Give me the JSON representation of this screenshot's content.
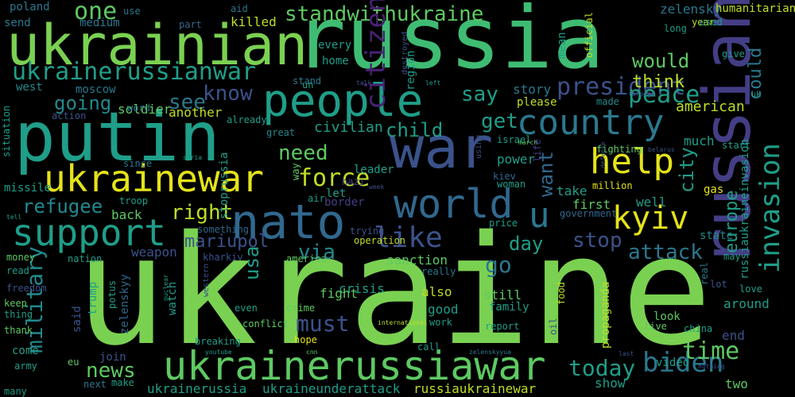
{
  "palette": {
    "background": "#000000",
    "lime": "#7ad151",
    "green": "#3fbc73",
    "teal": "#1f9e89",
    "tealdark": "#23888e",
    "blue": "#2a788e",
    "bluedark": "#31688e",
    "indigo": "#3b528b",
    "purple": "#433e85",
    "violet": "#482173",
    "yellow": "#e4e319",
    "yellowgreen": "#bddf26",
    "spring": "#5ec962"
  },
  "words": [
    {
      "t": "ukraine",
      "c": "lime"
    },
    {
      "t": "russia",
      "c": "green"
    },
    {
      "t": "putin",
      "c": "teal"
    },
    {
      "t": "ukrainian",
      "c": "lime"
    },
    {
      "t": "russian",
      "c": "purple"
    },
    {
      "t": "war",
      "c": "indigo"
    },
    {
      "t": "people",
      "c": "teal"
    },
    {
      "t": "nato",
      "c": "bluedark"
    },
    {
      "t": "country",
      "c": "blue"
    },
    {
      "t": "world",
      "c": "bluedark"
    },
    {
      "t": "ukrainewar",
      "c": "yellow"
    },
    {
      "t": "ukrainerussiawar",
      "c": "spring"
    },
    {
      "t": "support",
      "c": "teal"
    },
    {
      "t": "invasion",
      "c": "teal"
    },
    {
      "t": "help",
      "c": "yellow"
    },
    {
      "t": "kyiv",
      "c": "yellow"
    },
    {
      "t": "like",
      "c": "indigo"
    },
    {
      "t": "u",
      "c": "blue"
    },
    {
      "t": "president",
      "c": "indigo"
    },
    {
      "t": "ukrainerussianwar",
      "c": "teal"
    },
    {
      "t": "standwithukraine",
      "c": "spring"
    },
    {
      "t": "peace",
      "c": "teal"
    },
    {
      "t": "force",
      "c": "yellowgreen"
    },
    {
      "t": "military",
      "c": "tealdark"
    },
    {
      "t": "biden",
      "c": "blue"
    },
    {
      "t": "time",
      "c": "spring"
    },
    {
      "t": "today",
      "c": "teal"
    },
    {
      "t": "news",
      "c": "spring"
    },
    {
      "t": "must",
      "c": "indigo"
    },
    {
      "t": "attack",
      "c": "blue"
    },
    {
      "t": "city",
      "c": "teal"
    },
    {
      "t": "stop",
      "c": "indigo"
    },
    {
      "t": "europe",
      "c": "teal"
    },
    {
      "t": "could",
      "c": "blue"
    },
    {
      "t": "would",
      "c": "spring"
    },
    {
      "t": "think",
      "c": "yellowgreen"
    },
    {
      "t": "say",
      "c": "teal"
    },
    {
      "t": "get",
      "c": "teal"
    },
    {
      "t": "want",
      "c": "bluedark"
    },
    {
      "t": "know",
      "c": "indigo"
    },
    {
      "t": "going",
      "c": "tealdark"
    },
    {
      "t": "child",
      "c": "teal"
    },
    {
      "t": "need",
      "c": "spring"
    },
    {
      "t": "refugee",
      "c": "tealdark"
    },
    {
      "t": "right",
      "c": "yellowgreen"
    },
    {
      "t": "mariupol",
      "c": "indigo"
    },
    {
      "t": "via",
      "c": "tealdark"
    },
    {
      "t": "day",
      "c": "teal"
    },
    {
      "t": "go",
      "c": "blue"
    },
    {
      "t": "see",
      "c": "blue"
    },
    {
      "t": "one",
      "c": "spring"
    },
    {
      "t": "citizen",
      "c": "violet"
    },
    {
      "t": "usa",
      "c": "teal"
    },
    {
      "t": "russiaukrainewar",
      "c": "yellowgreen"
    },
    {
      "t": "ukraineunderattack",
      "c": "teal"
    },
    {
      "t": "ukrainerussia",
      "c": "teal"
    },
    {
      "t": "civilian",
      "c": "teal"
    },
    {
      "t": "another",
      "c": "yellowgreen"
    },
    {
      "t": "soldier",
      "c": "spring"
    },
    {
      "t": "sanction",
      "c": "spring"
    },
    {
      "t": "also",
      "c": "yellowgreen"
    },
    {
      "t": "good",
      "c": "teal"
    },
    {
      "t": "still",
      "c": "spring"
    },
    {
      "t": "crisis",
      "c": "teal"
    },
    {
      "t": "fight",
      "c": "spring"
    },
    {
      "t": "power",
      "c": "teal"
    },
    {
      "t": "first",
      "c": "spring"
    },
    {
      "t": "take",
      "c": "teal"
    },
    {
      "t": "well",
      "c": "teal"
    },
    {
      "t": "much",
      "c": "teal"
    },
    {
      "t": "american",
      "c": "yellowgreen"
    },
    {
      "t": "back",
      "c": "spring"
    },
    {
      "t": "weapon",
      "c": "indigo"
    },
    {
      "t": "russiaukraineinvasion",
      "c": "teal"
    },
    {
      "t": "zelensky",
      "c": "blue"
    },
    {
      "t": "killed",
      "c": "yellowgreen"
    },
    {
      "t": "humanitarian",
      "c": "yellowgreen"
    },
    {
      "t": "poland",
      "c": "blue"
    },
    {
      "t": "medium",
      "c": "blue"
    },
    {
      "t": "send",
      "c": "blue"
    },
    {
      "t": "use",
      "c": "blue"
    },
    {
      "t": "part",
      "c": "bluedark"
    },
    {
      "t": "aid",
      "c": "blue"
    },
    {
      "t": "west",
      "c": "tealdark"
    },
    {
      "t": "moscow",
      "c": "blue"
    },
    {
      "t": "action",
      "c": "indigo"
    },
    {
      "t": "word",
      "c": "blue"
    },
    {
      "t": "story",
      "c": "blue"
    },
    {
      "t": "please",
      "c": "yellowgreen"
    },
    {
      "t": "stand",
      "c": "blue"
    },
    {
      "t": "home",
      "c": "teal"
    },
    {
      "t": "every",
      "c": "teal"
    },
    {
      "t": "great",
      "c": "tealdark"
    },
    {
      "t": "leader",
      "c": "teal"
    },
    {
      "t": "nazi",
      "c": "purple"
    },
    {
      "t": "let",
      "c": "teal"
    },
    {
      "t": "missile",
      "c": "teal"
    },
    {
      "t": "troop",
      "c": "teal"
    },
    {
      "t": "since",
      "c": "blue"
    },
    {
      "t": "syria",
      "c": "teal"
    },
    {
      "t": "something",
      "c": "bluedark"
    },
    {
      "t": "nation",
      "c": "teal"
    },
    {
      "t": "kharkiv",
      "c": "indigo"
    },
    {
      "t": "america",
      "c": "spring"
    },
    {
      "t": "trying",
      "c": "indigo"
    },
    {
      "t": "price",
      "c": "teal"
    },
    {
      "t": "really",
      "c": "blue"
    },
    {
      "t": "work",
      "c": "teal"
    },
    {
      "t": "report",
      "c": "teal"
    },
    {
      "t": "family",
      "c": "teal"
    },
    {
      "t": "show",
      "c": "teal"
    },
    {
      "t": "video",
      "c": "teal"
    },
    {
      "t": "two",
      "c": "spring"
    },
    {
      "t": "end",
      "c": "indigo"
    },
    {
      "t": "china",
      "c": "teal"
    },
    {
      "t": "live",
      "c": "spring"
    },
    {
      "t": "around",
      "c": "teal"
    },
    {
      "t": "love",
      "c": "teal"
    },
    {
      "t": "look",
      "c": "spring"
    },
    {
      "t": "may",
      "c": "teal"
    },
    {
      "t": "state",
      "c": "tealdark"
    },
    {
      "t": "gas",
      "c": "yellow"
    },
    {
      "t": "million",
      "c": "yellow"
    },
    {
      "t": "fighting",
      "c": "spring"
    },
    {
      "t": "government",
      "c": "bluedark"
    },
    {
      "t": "woman",
      "c": "teal"
    },
    {
      "t": "mean",
      "c": "teal"
    },
    {
      "t": "long",
      "c": "teal"
    },
    {
      "t": "year",
      "c": "yellowgreen"
    },
    {
      "t": "give",
      "c": "teal"
    },
    {
      "t": "uk",
      "c": "teal"
    },
    {
      "t": "start",
      "c": "teal"
    },
    {
      "t": "made",
      "c": "tealdark"
    },
    {
      "t": "read",
      "c": "teal"
    },
    {
      "t": "freedom",
      "c": "indigo"
    },
    {
      "t": "keep",
      "c": "spring"
    },
    {
      "t": "thing",
      "c": "teal"
    },
    {
      "t": "thank",
      "c": "spring"
    },
    {
      "t": "come",
      "c": "teal"
    },
    {
      "t": "army",
      "c": "teal"
    },
    {
      "t": "many",
      "c": "teal"
    },
    {
      "t": "money",
      "c": "spring"
    },
    {
      "t": "situation",
      "c": "teal"
    },
    {
      "t": "eu",
      "c": "spring"
    },
    {
      "t": "next",
      "c": "blue"
    },
    {
      "t": "make",
      "c": "teal"
    },
    {
      "t": "join",
      "c": "indigo"
    },
    {
      "t": "even",
      "c": "teal"
    },
    {
      "t": "conflict",
      "c": "spring"
    },
    {
      "t": "crime",
      "c": "spring"
    },
    {
      "t": "call",
      "c": "teal"
    },
    {
      "t": "breaking",
      "c": "teal"
    },
    {
      "t": "hope",
      "c": "yellow"
    },
    {
      "t": "cnn",
      "c": "spring"
    },
    {
      "t": "youtube",
      "c": "teal"
    },
    {
      "t": "international",
      "c": "yellowgreen"
    },
    {
      "t": "nothing",
      "c": "indigo"
    },
    {
      "t": "last",
      "c": "indigo"
    },
    {
      "t": "tell",
      "c": "teal"
    },
    {
      "t": "kiev",
      "c": "bluedark"
    },
    {
      "t": "operation",
      "c": "yellowgreen"
    },
    {
      "t": "border",
      "c": "purple"
    },
    {
      "t": "air",
      "c": "teal"
    },
    {
      "t": "way",
      "c": "spring"
    },
    {
      "t": "already",
      "c": "teal"
    },
    {
      "t": "israel",
      "c": "teal"
    },
    {
      "t": "march",
      "c": "spring"
    },
    {
      "t": "life",
      "c": "purple"
    },
    {
      "t": "lot",
      "c": "indigo"
    },
    {
      "t": "un",
      "c": "teal"
    },
    {
      "t": "talk",
      "c": "indigo"
    },
    {
      "t": "left",
      "c": "teal"
    },
    {
      "t": "foreign",
      "c": "indigo"
    },
    {
      "t": "used",
      "c": "teal"
    },
    {
      "t": "defense",
      "c": "indigo"
    },
    {
      "t": "belarus",
      "c": "indigo"
    },
    {
      "t": "week",
      "c": "indigo"
    },
    {
      "t": "using",
      "c": "indigo"
    },
    {
      "t": "destroyed",
      "c": "indigo"
    },
    {
      "t": "region",
      "c": "teal"
    },
    {
      "t": "official",
      "c": "yellowgreen"
    },
    {
      "t": "stoprussia",
      "c": "teal"
    },
    {
      "t": "zelenskyy",
      "c": "bluedark"
    },
    {
      "t": "potus",
      "c": "teal"
    },
    {
      "t": "trump",
      "c": "teal"
    },
    {
      "t": "said",
      "c": "indigo"
    },
    {
      "t": "watch",
      "c": "teal"
    },
    {
      "t": "nuclear",
      "c": "teal"
    },
    {
      "t": "western",
      "c": "indigo"
    },
    {
      "t": "food",
      "c": "yellowgreen"
    },
    {
      "t": "oil",
      "c": "indigo"
    },
    {
      "t": "propaganda",
      "c": "yellowgreen"
    },
    {
      "t": "real",
      "c": "blue"
    },
    {
      "t": "zelenskyyua",
      "c": "blue"
    },
    {
      "t": "democracy",
      "c": "yellowgreen"
    },
    {
      "t": "putinwarcriminal",
      "c": "teal"
    }
  ]
}
